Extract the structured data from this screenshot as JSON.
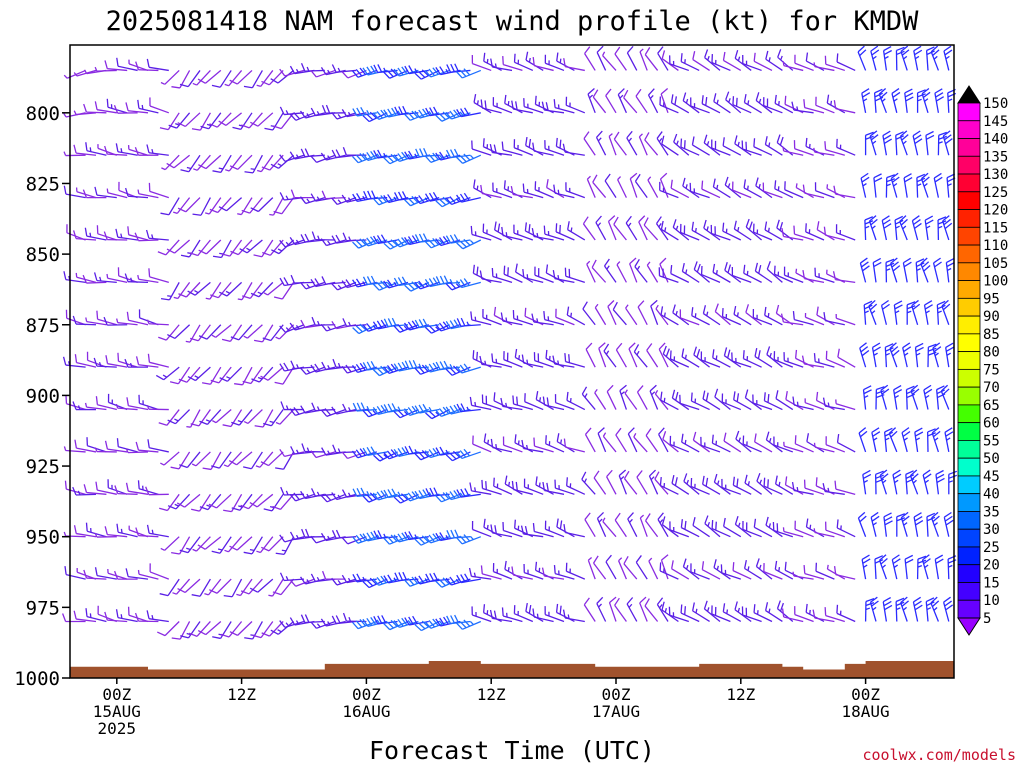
{
  "chart_data": {
    "type": "wind-barb-timeheight",
    "title": "2025081418 NAM forecast wind profile (kt) for KMDW",
    "xlabel": "Forecast Time (UTC)",
    "ylabel": "",
    "credit": "coolwx.com/models",
    "y_axis": {
      "ticks": [
        "800",
        "825",
        "850",
        "875",
        "900",
        "925",
        "950",
        "975",
        "1000"
      ],
      "range_hpa": [
        1000,
        776
      ]
    },
    "x_axis": {
      "range_hours": [
        -4.5,
        80.5
      ],
      "ticks": [
        {
          "hour": 0,
          "lines": [
            "00Z",
            "15AUG",
            "2025"
          ]
        },
        {
          "hour": 12,
          "lines": [
            "12Z"
          ]
        },
        {
          "hour": 24,
          "lines": [
            "00Z",
            "16AUG"
          ]
        },
        {
          "hour": 36,
          "lines": [
            "12Z"
          ]
        },
        {
          "hour": 48,
          "lines": [
            "00Z",
            "17AUG"
          ]
        },
        {
          "hour": 60,
          "lines": [
            "12Z"
          ]
        },
        {
          "hour": 72,
          "lines": [
            "00Z",
            "18AUG"
          ]
        }
      ]
    },
    "colorbar": {
      "unit": "kt",
      "levels": [
        "150",
        "145",
        "140",
        "135",
        "130",
        "125",
        "120",
        "115",
        "110",
        "105",
        "100",
        "95",
        "90",
        "85",
        "80",
        "75",
        "70",
        "65",
        "60",
        "55",
        "50",
        "45",
        "40",
        "35",
        "30",
        "25",
        "20",
        "15",
        "10",
        "5"
      ],
      "colors": [
        "#ff00ff",
        "#ff00cc",
        "#ff0099",
        "#ff0066",
        "#ff0033",
        "#ff0000",
        "#ff2200",
        "#ff4400",
        "#ff6600",
        "#ff8800",
        "#ffaa00",
        "#ffcc00",
        "#ffee00",
        "#ffff00",
        "#eeff00",
        "#ccff00",
        "#99ff00",
        "#44ff00",
        "#00ff44",
        "#00ff99",
        "#00ffcc",
        "#00ccff",
        "#0099ff",
        "#0066ff",
        "#0044ff",
        "#0022ff",
        "#2200ff",
        "#4400ff",
        "#6600ff",
        "#8800ff"
      ],
      "top_arrow_color": "#000000",
      "bottom_arrow_color": "#9900ff"
    },
    "wind_field": {
      "time_step_hours": 1,
      "pressure_levels_hpa": [
        785,
        800,
        815,
        830,
        845,
        860,
        875,
        890,
        905,
        920,
        935,
        950,
        965,
        980
      ],
      "phases": [
        {
          "from": -3,
          "to": 6,
          "dir_deg": 280,
          "speed_kt": 10
        },
        {
          "from": 6,
          "to": 18,
          "dir_deg": 220,
          "speed_kt": 10
        },
        {
          "from": 18,
          "to": 25,
          "dir_deg": 260,
          "speed_kt": 15
        },
        {
          "from": 25,
          "to": 36,
          "dir_deg": 255,
          "speed_kt": 30
        },
        {
          "from": 36,
          "to": 46,
          "dir_deg": 290,
          "speed_kt": 15
        },
        {
          "from": 46,
          "to": 54,
          "dir_deg": 330,
          "speed_kt": 10
        },
        {
          "from": 54,
          "to": 66,
          "dir_deg": 300,
          "speed_kt": 15
        },
        {
          "from": 66,
          "to": 72,
          "dir_deg": 290,
          "speed_kt": 10
        },
        {
          "from": 72,
          "to": 80,
          "dir_deg": 350,
          "speed_kt": 25
        }
      ]
    },
    "terrain": {
      "color": "#a0522d",
      "top_hpa": [
        {
          "hour": -4.5,
          "p": 996
        },
        {
          "hour": 2,
          "p": 996
        },
        {
          "hour": 3,
          "p": 997
        },
        {
          "hour": 18,
          "p": 997
        },
        {
          "hour": 20,
          "p": 995
        },
        {
          "hour": 28,
          "p": 995
        },
        {
          "hour": 30,
          "p": 994
        },
        {
          "hour": 34,
          "p": 994
        },
        {
          "hour": 35,
          "p": 995
        },
        {
          "hour": 44,
          "p": 995
        },
        {
          "hour": 46,
          "p": 996
        },
        {
          "hour": 54,
          "p": 996
        },
        {
          "hour": 56,
          "p": 995
        },
        {
          "hour": 64,
          "p": 996
        },
        {
          "hour": 66,
          "p": 997
        },
        {
          "hour": 70,
          "p": 995
        },
        {
          "hour": 72,
          "p": 994
        },
        {
          "hour": 80.5,
          "p": 993
        }
      ]
    }
  }
}
